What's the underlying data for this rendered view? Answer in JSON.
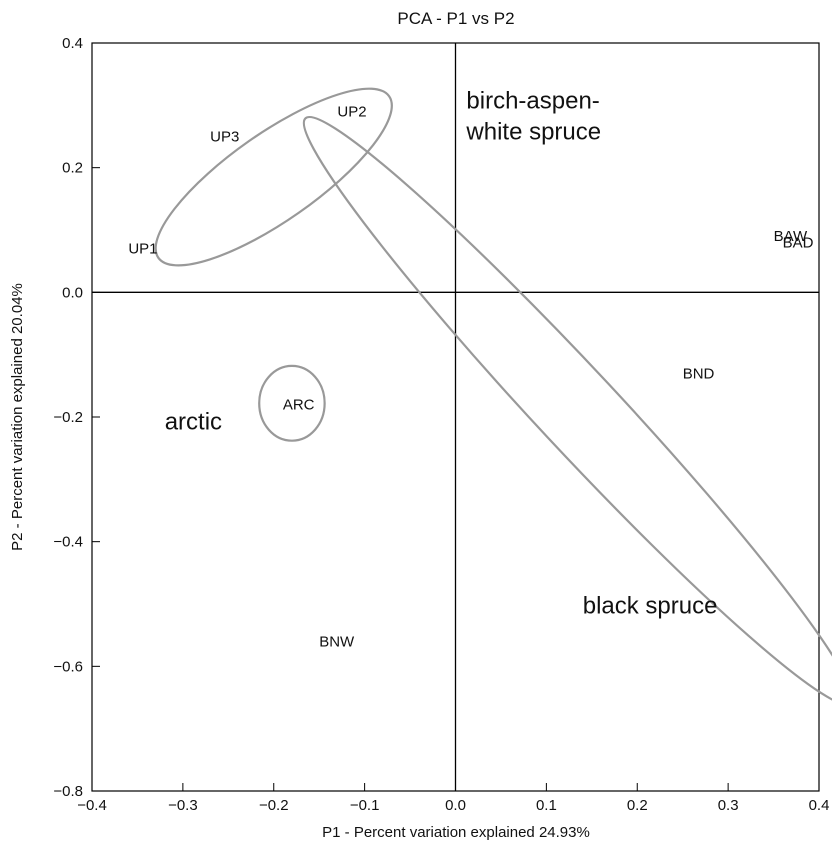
{
  "chart_data": {
    "type": "scatter",
    "title": "PCA - P1 vs P2",
    "xlabel": "P1 - Percent variation explained 24.93%",
    "ylabel": "P2 - Percent variation explained 20.04%",
    "xlim": [
      -0.4,
      0.4
    ],
    "ylim": [
      -0.8,
      0.4
    ],
    "x_ticks": [
      -0.4,
      -0.3,
      -0.2,
      -0.1,
      0.0,
      0.1,
      0.2,
      0.3,
      0.4
    ],
    "x_tick_labels": [
      "−0.4",
      "−0.3",
      "−0.2",
      "−0.1",
      "0.0",
      "0.1",
      "0.2",
      "0.3",
      "0.4"
    ],
    "y_ticks": [
      0.4,
      0.2,
      0.0,
      -0.2,
      -0.4,
      -0.6,
      -0.8
    ],
    "y_tick_labels": [
      "0.4",
      "0.2",
      "0.0",
      "−0.2",
      "−0.4",
      "−0.6",
      "−0.8"
    ],
    "grid": false,
    "points": [
      {
        "label": "UP1",
        "x": -0.36,
        "y": 0.07
      },
      {
        "label": "UP3",
        "x": -0.27,
        "y": 0.25
      },
      {
        "label": "UP2",
        "x": -0.13,
        "y": 0.29
      },
      {
        "label": "ARC",
        "x": -0.19,
        "y": -0.18
      },
      {
        "label": "BAW",
        "x": 0.35,
        "y": 0.09
      },
      {
        "label": "BAD",
        "x": 0.36,
        "y": 0.08
      },
      {
        "label": "BND",
        "x": 0.25,
        "y": -0.13
      },
      {
        "label": "BNW",
        "x": -0.15,
        "y": -0.56
      }
    ],
    "groups": [
      {
        "label": "birch-aspen-\nwhite spruce",
        "x": 0.012,
        "y": 0.295
      },
      {
        "label": "arctic",
        "x": -0.32,
        "y": -0.22
      },
      {
        "label": "black spruce",
        "x": 0.14,
        "y": -0.515
      }
    ],
    "ellipses": [
      {
        "name": "UP",
        "cx": -0.2,
        "cy": 0.185,
        "rx": 0.155,
        "ry": 0.07,
        "angle_deg": -35
      },
      {
        "name": "ARC",
        "cx": -0.18,
        "cy": -0.178,
        "rx": 0.036,
        "ry": 0.06,
        "angle_deg": 0
      },
      {
        "name": "B",
        "cx": 0.135,
        "cy": -0.19,
        "rx": 0.44,
        "ry": 0.065,
        "angle_deg": 47
      }
    ],
    "ellipse_color": "#999999",
    "axis_color": "#000000"
  }
}
